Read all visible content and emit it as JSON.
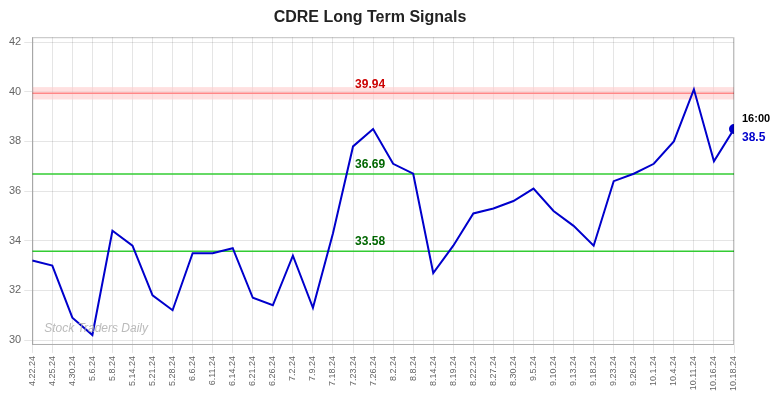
{
  "chart_data": {
    "type": "line",
    "title": "CDRE Long Term Signals",
    "categories": [
      "4.22.24",
      "4.25.24",
      "4.30.24",
      "5.6.24",
      "5.8.24",
      "5.14.24",
      "5.21.24",
      "5.28.24",
      "6.6.24",
      "6.11.24",
      "6.14.24",
      "6.21.24",
      "6.26.24",
      "7.2.24",
      "7.9.24",
      "7.18.24",
      "7.23.24",
      "7.26.24",
      "8.2.24",
      "8.8.24",
      "8.14.24",
      "8.19.24",
      "8.22.24",
      "8.27.24",
      "8.30.24",
      "9.5.24",
      "9.10.24",
      "9.13.24",
      "9.18.24",
      "9.23.24",
      "9.26.24",
      "10.1.24",
      "10.4.24",
      "10.11.24",
      "10.16.24",
      "10.18.24"
    ],
    "values": [
      33.2,
      33.0,
      30.9,
      30.2,
      34.4,
      33.8,
      31.8,
      31.2,
      33.5,
      33.5,
      33.7,
      31.7,
      31.4,
      33.4,
      31.3,
      34.3,
      37.8,
      38.5,
      37.1,
      36.7,
      32.7,
      33.8,
      35.1,
      35.3,
      35.6,
      36.1,
      35.2,
      34.6,
      33.8,
      36.4,
      36.7,
      37.1,
      38.0,
      40.1,
      37.2,
      38.5
    ],
    "color": "#0000cc",
    "ylim": [
      29.8,
      42.2
    ],
    "yticks": [
      30,
      32,
      34,
      36,
      38,
      40,
      42
    ],
    "grid": true,
    "annotations": [
      {
        "y": 39.94,
        "label": "39.94",
        "color": "#ff8888",
        "label_color": "#cc0000",
        "band": [
          39.69,
          40.19
        ],
        "band_color": "#ffcccc"
      },
      {
        "y": 36.69,
        "label": "36.69",
        "color": "#33cc33",
        "label_color": "#006600"
      },
      {
        "y": 33.58,
        "label": "33.58",
        "color": "#33cc33",
        "label_color": "#006600"
      }
    ],
    "last_point": {
      "time_label": "16:00",
      "value_label": "38.5",
      "color": "#0000cc"
    },
    "watermark": "Stock Traders Daily"
  }
}
